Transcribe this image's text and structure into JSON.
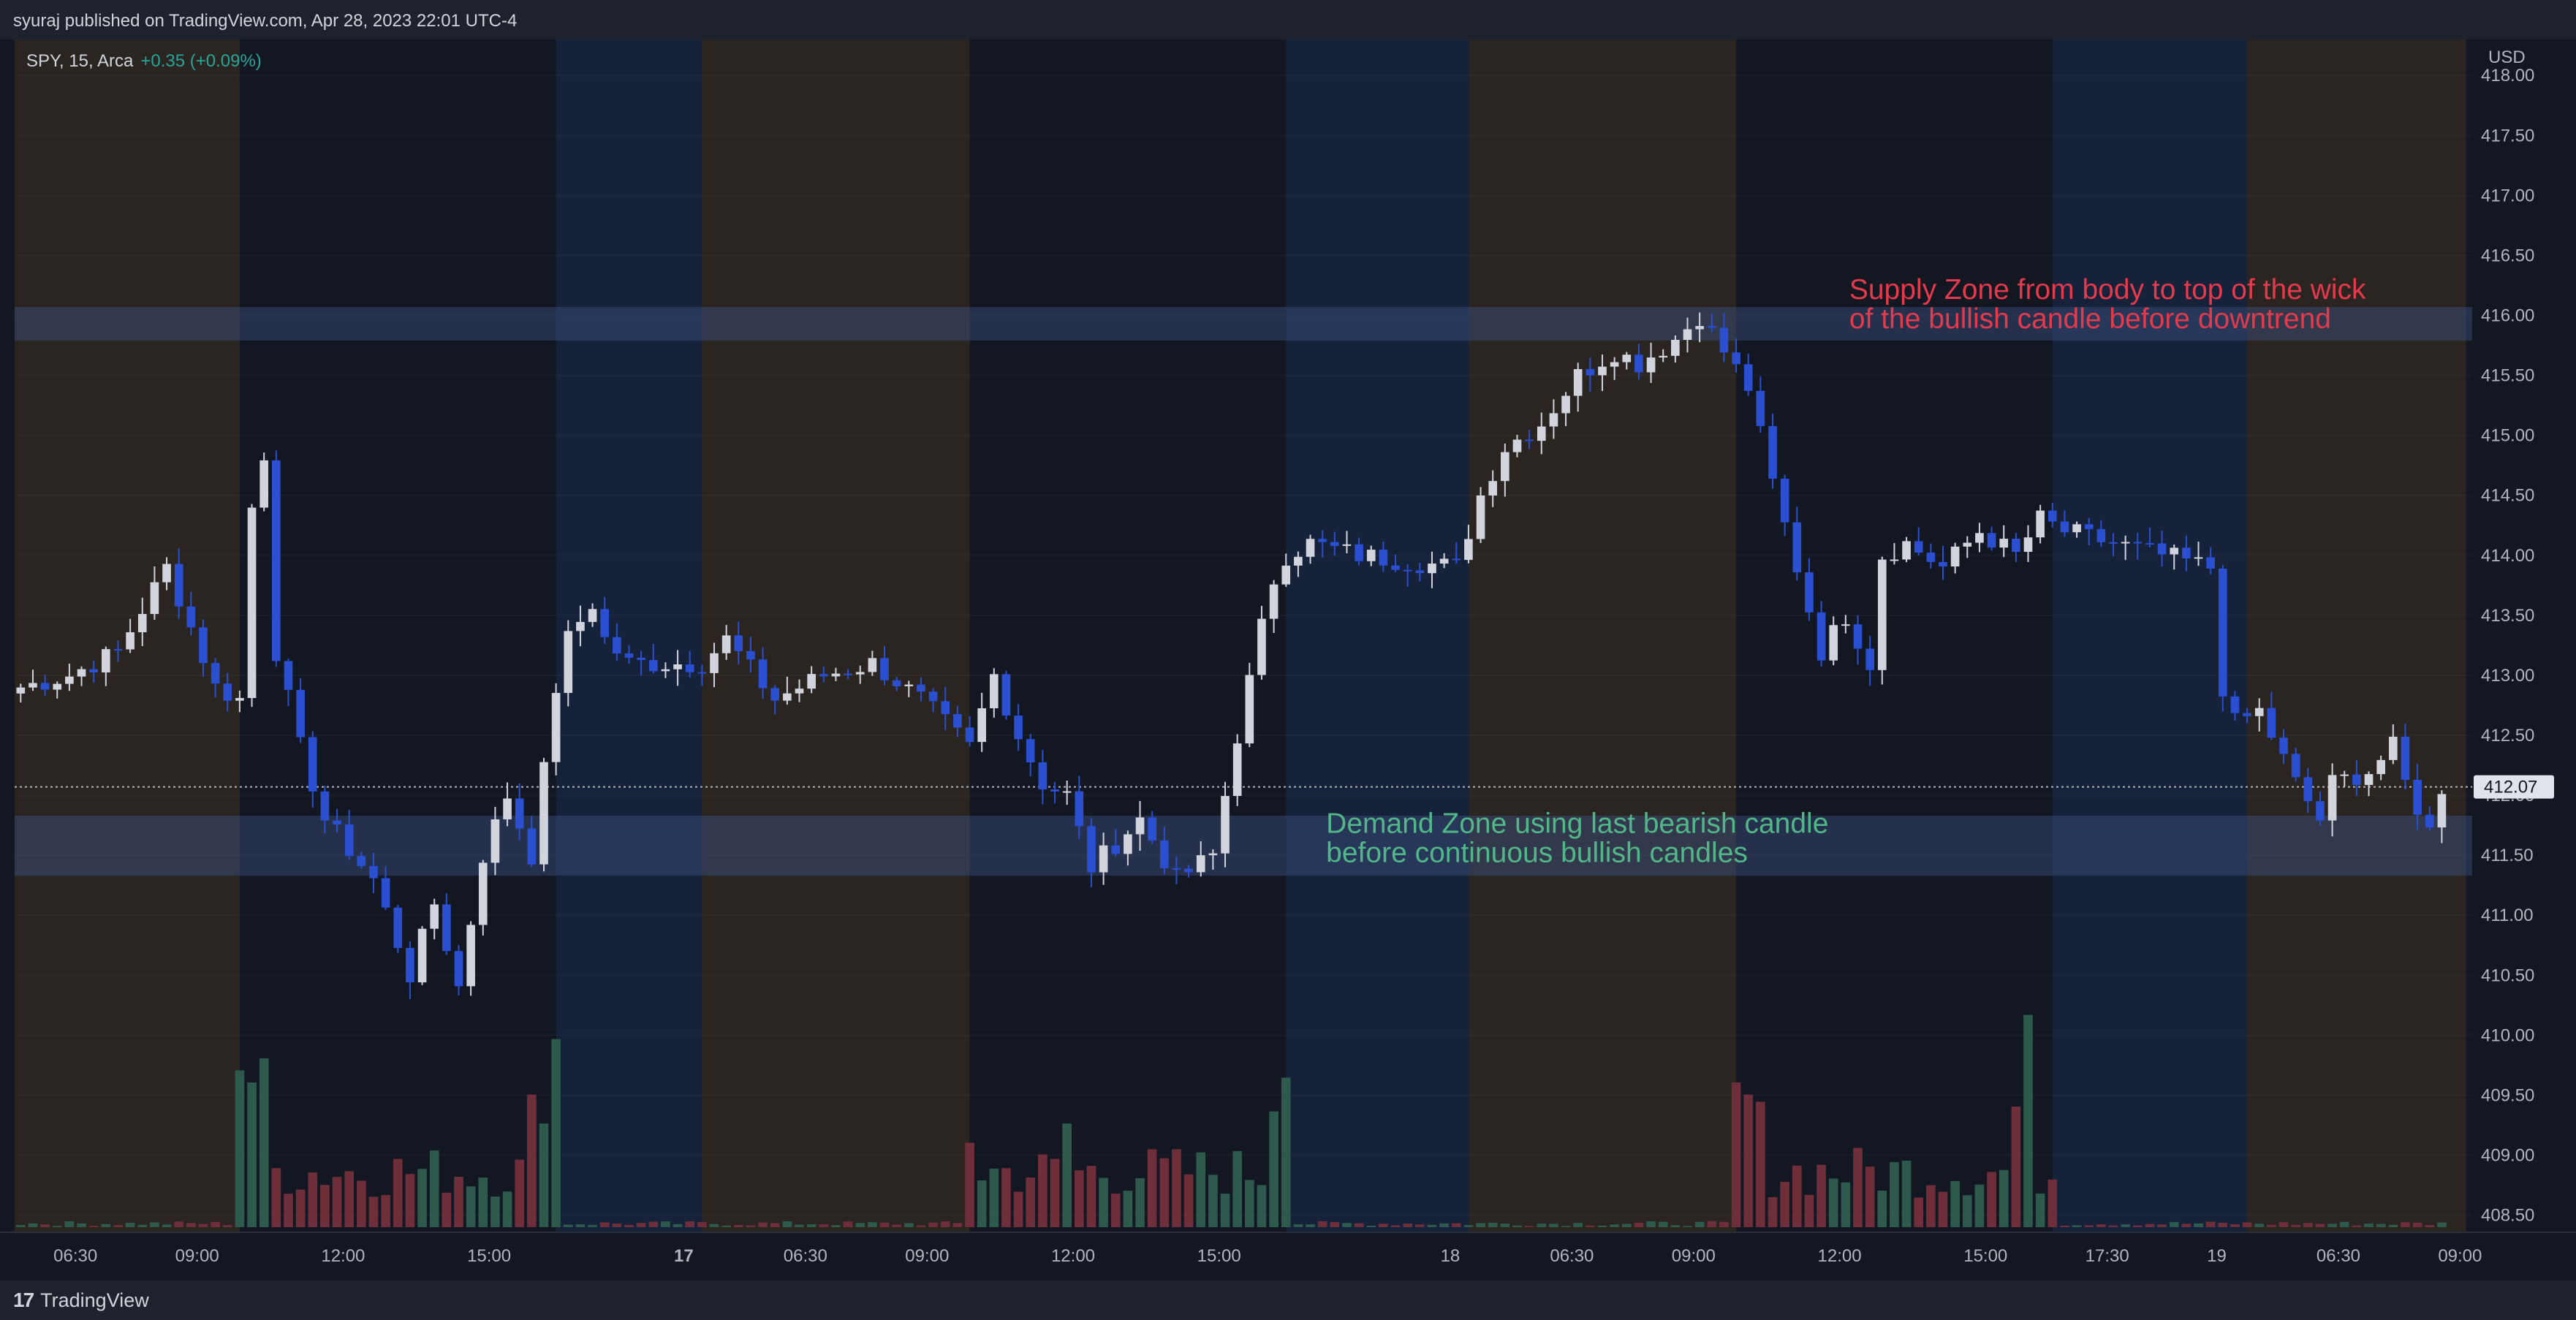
{
  "header": {
    "attribution": "syuraj published on TradingView.com, Apr 28, 2023 22:01 UTC-4"
  },
  "legend": {
    "symbol": "SPY, 15, Arca",
    "change": "+0.35 (+0.09%)"
  },
  "footer": {
    "brand": "TradingView",
    "logo_icon": "tradingview-logo-icon"
  },
  "colors": {
    "bg": "#131722",
    "bull": "#d1d4dc",
    "bear": "#2a4fd0",
    "vol_bull": "#2d5a4c",
    "vol_bear": "#6e2f3a",
    "premarket": "#2a2521",
    "afterhours": "#16213a",
    "supply_note": "#e5394c",
    "demand_note": "#52b788",
    "zone": "#3b5280"
  },
  "chart_data": {
    "type": "candlestick",
    "symbol": "SPY",
    "interval": "15",
    "exchange": "Arca",
    "price_axis_label": "USD",
    "last_price": "412.07",
    "ylim": [
      408.4,
      418.3
    ],
    "yticks": [
      "418.00",
      "417.50",
      "417.00",
      "416.50",
      "416.00",
      "415.50",
      "415.00",
      "414.50",
      "414.00",
      "413.50",
      "413.00",
      "412.50",
      "412.00",
      "411.50",
      "411.00",
      "410.50",
      "410.00",
      "409.50",
      "409.00",
      "408.50"
    ],
    "xticks": [
      {
        "label": "06:30",
        "bar": 4.5
      },
      {
        "label": "09:00",
        "bar": 14.5
      },
      {
        "label": "12:00",
        "bar": 26.5
      },
      {
        "label": "15:00",
        "bar": 38.5
      },
      {
        "label": "17",
        "bar": 54.5,
        "bold": true
      },
      {
        "label": "06:30",
        "bar": 64.5
      },
      {
        "label": "09:00",
        "bar": 74.5
      },
      {
        "label": "12:00",
        "bar": 86.5
      },
      {
        "label": "15:00",
        "bar": 98.5
      },
      {
        "label": "18",
        "bar": 117.5
      },
      {
        "label": "06:30",
        "bar": 127.5
      },
      {
        "label": "09:00",
        "bar": 137.5
      },
      {
        "label": "12:00",
        "bar": 149.5
      },
      {
        "label": "15:00",
        "bar": 161.5
      },
      {
        "label": "17:30",
        "bar": 171.5
      },
      {
        "label": "19",
        "bar": 180.5
      },
      {
        "label": "06:30",
        "bar": 190.5
      },
      {
        "label": "09:00",
        "bar": 200.5
      }
    ],
    "sessions": [
      {
        "from": 0,
        "to": 18.5,
        "type": "premarket"
      },
      {
        "from": 18.5,
        "to": 44.5,
        "type": "regular"
      },
      {
        "from": 44.5,
        "to": 56.5,
        "type": "afterhours"
      },
      {
        "from": 56.5,
        "to": 78.5,
        "type": "premarket"
      },
      {
        "from": 78.5,
        "to": 104.5,
        "type": "regular"
      },
      {
        "from": 104.5,
        "to": 119.5,
        "type": "afterhours"
      },
      {
        "from": 119.5,
        "to": 141.5,
        "type": "premarket"
      },
      {
        "from": 141.5,
        "to": 167.5,
        "type": "regular"
      },
      {
        "from": 167.5,
        "to": 183.5,
        "type": "afterhours"
      },
      {
        "from": 183.5,
        "to": 201.5,
        "type": "premarket"
      }
    ],
    "zones": [
      {
        "name": "supply",
        "from": 415.79,
        "to": 416.07
      },
      {
        "name": "demand",
        "from": 411.33,
        "to": 411.83
      }
    ],
    "annotations": [
      {
        "name": "supply-note",
        "lines": [
          "Supply Zone from body to top of the wick",
          "of the bullish candle before downtrend"
        ],
        "bar": 150.3,
        "price": 416.1,
        "color_key": "supply_note"
      },
      {
        "name": "demand-note",
        "lines": [
          "Demand Zone using last bearish candle",
          "before continuous bullish candles"
        ],
        "bar": 107.3,
        "price": 411.65,
        "color_key": "demand_note"
      }
    ],
    "anchors": [
      [
        0,
        412.9
      ],
      [
        4,
        413.0
      ],
      [
        8,
        413.2
      ],
      [
        12,
        413.9
      ],
      [
        14,
        413.4
      ],
      [
        16,
        412.9
      ],
      [
        18,
        412.8
      ],
      [
        19,
        414.4
      ],
      [
        20,
        414.85
      ],
      [
        21,
        413.2
      ],
      [
        23,
        412.4
      ],
      [
        25,
        411.8
      ],
      [
        29,
        411.3
      ],
      [
        32,
        410.5
      ],
      [
        34,
        411.1
      ],
      [
        36,
        410.4
      ],
      [
        38,
        411.5
      ],
      [
        40,
        412.0
      ],
      [
        42,
        411.5
      ],
      [
        44,
        412.9
      ],
      [
        45,
        413.3
      ],
      [
        47,
        413.6
      ],
      [
        48,
        413.3
      ],
      [
        50,
        413.1
      ],
      [
        55,
        413.1
      ],
      [
        56,
        413.1
      ],
      [
        58,
        413.3
      ],
      [
        62,
        412.8
      ],
      [
        66,
        413.0
      ],
      [
        70,
        413.1
      ],
      [
        74,
        412.8
      ],
      [
        78,
        412.4
      ],
      [
        80,
        413.0
      ],
      [
        82,
        412.5
      ],
      [
        84,
        412.1
      ],
      [
        86,
        412.0
      ],
      [
        88,
        411.4
      ],
      [
        90,
        411.6
      ],
      [
        92,
        411.8
      ],
      [
        95,
        411.3
      ],
      [
        98,
        411.5
      ],
      [
        100,
        412.5
      ],
      [
        102,
        413.4
      ],
      [
        103,
        413.8
      ],
      [
        104,
        414.0
      ],
      [
        106,
        414.1
      ],
      [
        110,
        414.0
      ],
      [
        118,
        413.9
      ],
      [
        120,
        414.5
      ],
      [
        122,
        414.9
      ],
      [
        125,
        415.1
      ],
      [
        128,
        415.5
      ],
      [
        131,
        415.7
      ],
      [
        133,
        415.6
      ],
      [
        136,
        415.8
      ],
      [
        138,
        416.0
      ],
      [
        140,
        415.7
      ],
      [
        142,
        415.4
      ],
      [
        144,
        414.6
      ],
      [
        146,
        413.9
      ],
      [
        148,
        413.2
      ],
      [
        150,
        413.5
      ],
      [
        152,
        413.1
      ],
      [
        153,
        414.0
      ],
      [
        155,
        414.1
      ],
      [
        158,
        413.9
      ],
      [
        161,
        414.2
      ],
      [
        164,
        414.0
      ],
      [
        166,
        414.3
      ],
      [
        168,
        414.2
      ],
      [
        172,
        414.1
      ],
      [
        176,
        414.0
      ],
      [
        180,
        413.9
      ],
      [
        181,
        412.9
      ],
      [
        182,
        412.6
      ],
      [
        184,
        412.7
      ],
      [
        185,
        412.5
      ],
      [
        187,
        412.1
      ],
      [
        189,
        411.8
      ],
      [
        190,
        412.1
      ],
      [
        193,
        412.2
      ],
      [
        195,
        412.4
      ],
      [
        196,
        412.1
      ],
      [
        198,
        411.7
      ],
      [
        199,
        412.07
      ]
    ],
    "volume_spikes": [
      {
        "bar": 18,
        "v": 0.65
      },
      {
        "bar": 19,
        "v": 0.6
      },
      {
        "bar": 20,
        "v": 0.7
      },
      {
        "bar": 42,
        "v": 0.55
      },
      {
        "bar": 43,
        "v": 0.43
      },
      {
        "bar": 44,
        "v": 0.78
      },
      {
        "bar": 78,
        "v": 0.35
      },
      {
        "bar": 86,
        "v": 0.43
      },
      {
        "bar": 103,
        "v": 0.48
      },
      {
        "bar": 104,
        "v": 0.62
      },
      {
        "bar": 141,
        "v": 0.6
      },
      {
        "bar": 142,
        "v": 0.55
      },
      {
        "bar": 143,
        "v": 0.52
      },
      {
        "bar": 164,
        "v": 0.5
      },
      {
        "bar": 165,
        "v": 0.88
      }
    ]
  }
}
